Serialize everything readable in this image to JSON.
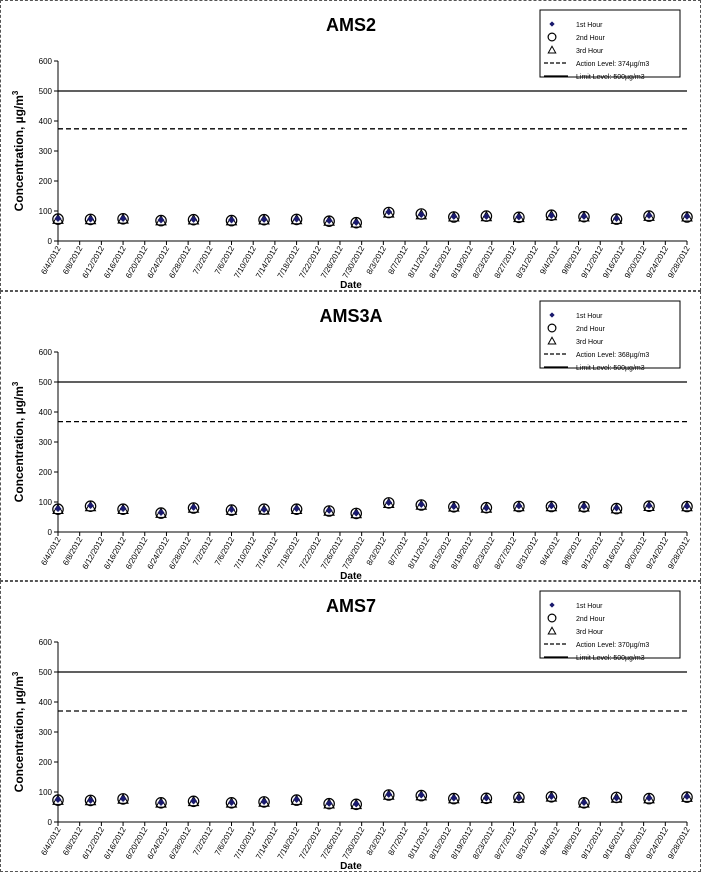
{
  "chart_data": [
    {
      "type": "scatter",
      "title": "AMS2",
      "xlabel": "Date",
      "ylabel": "Concentration,  µg/m",
      "ylabel_superscript": "3",
      "ylim": [
        0,
        600
      ],
      "yticks": [
        0,
        100,
        200,
        300,
        400,
        500,
        600
      ],
      "xticks": [
        "6/4/2012",
        "6/8/2012",
        "6/12/2012",
        "6/16/2012",
        "6/20/2012",
        "6/24/2012",
        "6/28/2012",
        "7/2/2012",
        "7/6/2012",
        "7/10/2012",
        "7/14/2012",
        "7/18/2012",
        "7/22/2012",
        "7/26/2012",
        "7/30/2012",
        "8/3/2012",
        "8/7/2012",
        "8/11/2012",
        "8/15/2012",
        "8/19/2012",
        "8/23/2012",
        "8/27/2012",
        "8/31/2012",
        "9/4/2012",
        "9/8/2012",
        "9/12/2012",
        "9/16/2012",
        "9/20/2012",
        "9/24/2012",
        "9/28/2012"
      ],
      "x": [
        "6/4/2012",
        "6/10/2012",
        "6/16/2012",
        "6/23/2012",
        "6/29/2012",
        "7/6/2012",
        "7/12/2012",
        "7/18/2012",
        "7/24/2012",
        "7/29/2012",
        "8/4/2012",
        "8/10/2012",
        "8/16/2012",
        "8/22/2012",
        "8/28/2012",
        "9/3/2012",
        "9/9/2012",
        "9/15/2012",
        "9/21/2012",
        "9/28/2012"
      ],
      "series": [
        {
          "name": "1st Hour",
          "marker": "diamond",
          "values": [
            75,
            73,
            75,
            70,
            72,
            70,
            72,
            73,
            68,
            62,
            97,
            88,
            82,
            82,
            80,
            85,
            82,
            75,
            85,
            82
          ]
        },
        {
          "name": "2nd Hour",
          "marker": "circle",
          "values": [
            73,
            72,
            74,
            68,
            71,
            68,
            71,
            72,
            66,
            61,
            95,
            90,
            80,
            83,
            79,
            86,
            81,
            73,
            83,
            80
          ]
        },
        {
          "name": "3rd Hour",
          "marker": "triangle",
          "values": [
            72,
            71,
            73,
            67,
            70,
            67,
            70,
            71,
            66,
            60,
            93,
            87,
            80,
            81,
            78,
            84,
            80,
            72,
            82,
            80
          ]
        }
      ],
      "reference_lines": [
        {
          "name": "Action Level: 374µg/m3",
          "value": 374,
          "style": "dashed"
        },
        {
          "name": "Limit Level: 500µg/m3",
          "value": 500,
          "style": "solid"
        }
      ],
      "legend": "top-right",
      "grid": false
    },
    {
      "type": "scatter",
      "title": "AMS3A",
      "xlabel": "Date",
      "ylabel": "Concentration,  µg/m",
      "ylabel_superscript": "3",
      "ylim": [
        0,
        600
      ],
      "yticks": [
        0,
        100,
        200,
        300,
        400,
        500,
        600
      ],
      "xticks": [
        "6/4/2012",
        "6/8/2012",
        "6/12/2012",
        "6/16/2012",
        "6/20/2012",
        "6/24/2012",
        "6/28/2012",
        "7/2/2012",
        "7/6/2012",
        "7/10/2012",
        "7/14/2012",
        "7/18/2012",
        "7/22/2012",
        "7/26/2012",
        "7/30/2012",
        "8/3/2012",
        "8/7/2012",
        "8/11/2012",
        "8/15/2012",
        "8/19/2012",
        "8/23/2012",
        "8/27/2012",
        "8/31/2012",
        "9/4/2012",
        "9/8/2012",
        "9/12/2012",
        "9/16/2012",
        "9/20/2012",
        "9/24/2012",
        "9/28/2012"
      ],
      "x": [
        "6/4/2012",
        "6/10/2012",
        "6/16/2012",
        "6/23/2012",
        "6/29/2012",
        "7/6/2012",
        "7/12/2012",
        "7/18/2012",
        "7/24/2012",
        "7/29/2012",
        "8/4/2012",
        "8/10/2012",
        "8/16/2012",
        "8/22/2012",
        "8/28/2012",
        "9/3/2012",
        "9/9/2012",
        "9/15/2012",
        "9/21/2012",
        "9/28/2012"
      ],
      "series": [
        {
          "name": "1st Hour",
          "marker": "diamond",
          "values": [
            78,
            88,
            78,
            65,
            82,
            75,
            75,
            78,
            72,
            63,
            98,
            92,
            85,
            80,
            87,
            87,
            85,
            80,
            88,
            86
          ]
        },
        {
          "name": "2nd Hour",
          "marker": "circle",
          "values": [
            76,
            86,
            76,
            63,
            80,
            73,
            76,
            76,
            70,
            62,
            97,
            90,
            84,
            81,
            85,
            85,
            84,
            78,
            86,
            85
          ]
        },
        {
          "name": "3rd Hour",
          "marker": "triangle",
          "values": [
            75,
            84,
            75,
            62,
            79,
            72,
            73,
            75,
            69,
            61,
            95,
            89,
            83,
            79,
            84,
            84,
            83,
            77,
            85,
            84
          ]
        }
      ],
      "reference_lines": [
        {
          "name": "Action Level: 368µg/m3",
          "value": 368,
          "style": "dashed"
        },
        {
          "name": "Limit Level: 500µg/m3",
          "value": 500,
          "style": "solid"
        }
      ],
      "legend": "top-right",
      "grid": false
    },
    {
      "type": "scatter",
      "title": "AMS7",
      "xlabel": "Date",
      "ylabel": "Concentration,  µg/m",
      "ylabel_superscript": "3",
      "ylim": [
        0,
        600
      ],
      "yticks": [
        0,
        100,
        200,
        300,
        400,
        500,
        600
      ],
      "xticks": [
        "6/4/2012",
        "6/8/2012",
        "6/12/2012",
        "6/16/2012",
        "6/20/2012",
        "6/24/2012",
        "6/28/2012",
        "7/2/2012",
        "7/6/2012",
        "7/10/2012",
        "7/14/2012",
        "7/18/2012",
        "7/22/2012",
        "7/26/2012",
        "7/30/2012",
        "8/3/2012",
        "8/7/2012",
        "8/11/2012",
        "8/15/2012",
        "8/19/2012",
        "8/23/2012",
        "8/27/2012",
        "8/31/2012",
        "9/4/2012",
        "9/8/2012",
        "9/12/2012",
        "9/16/2012",
        "9/20/2012",
        "9/24/2012",
        "9/28/2012"
      ],
      "x": [
        "6/4/2012",
        "6/10/2012",
        "6/16/2012",
        "6/23/2012",
        "6/29/2012",
        "7/6/2012",
        "7/12/2012",
        "7/18/2012",
        "7/24/2012",
        "7/29/2012",
        "8/4/2012",
        "8/10/2012",
        "8/16/2012",
        "8/22/2012",
        "8/28/2012",
        "9/3/2012",
        "9/9/2012",
        "9/15/2012",
        "9/21/2012",
        "9/28/2012"
      ],
      "series": [
        {
          "name": "1st Hour",
          "marker": "diamond",
          "values": [
            75,
            72,
            78,
            65,
            70,
            65,
            68,
            75,
            62,
            60,
            92,
            90,
            80,
            80,
            80,
            85,
            65,
            80,
            80,
            85
          ]
        },
        {
          "name": "2nd Hour",
          "marker": "circle",
          "values": [
            73,
            72,
            77,
            64,
            69,
            64,
            67,
            73,
            61,
            59,
            90,
            88,
            78,
            79,
            82,
            84,
            64,
            82,
            78,
            83
          ]
        },
        {
          "name": "3rd Hour",
          "marker": "triangle",
          "values": [
            72,
            71,
            76,
            63,
            68,
            63,
            66,
            72,
            60,
            58,
            89,
            87,
            77,
            78,
            79,
            83,
            63,
            79,
            77,
            82
          ]
        }
      ],
      "reference_lines": [
        {
          "name": "Action Level: 370µg/m3",
          "value": 370,
          "style": "dashed"
        },
        {
          "name": "Limit Level: 500µg/m3",
          "value": 500,
          "style": "solid"
        }
      ],
      "legend": "top-right",
      "grid": false
    }
  ]
}
